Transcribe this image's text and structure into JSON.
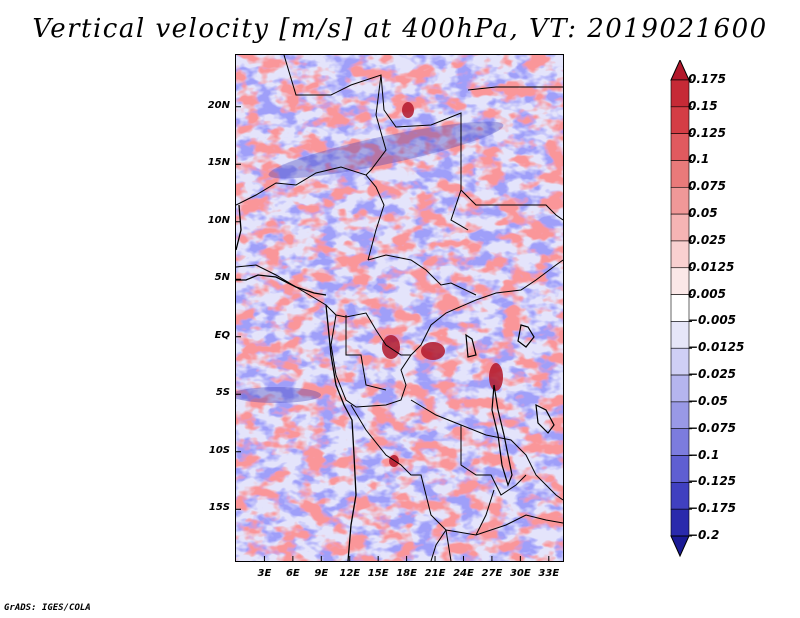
{
  "title": "Vertical velocity [m/s] at 400hPa, VT: 2019021600",
  "credit": "GrADS: IGES/COLA",
  "map": {
    "variable": "Vertical velocity",
    "units": "m/s",
    "level": "400hPa",
    "valid_time": "2019021600",
    "lat_labels": [
      "20N",
      "15N",
      "10N",
      "5N",
      "EQ",
      "5S",
      "10S",
      "15S"
    ],
    "lat_values": [
      20,
      15,
      10,
      5,
      0,
      -5,
      -10,
      -15
    ],
    "lon_labels": [
      "3E",
      "6E",
      "9E",
      "12E",
      "15E",
      "18E",
      "21E",
      "24E",
      "27E",
      "30E",
      "33E"
    ],
    "lon_values": [
      3,
      6,
      9,
      12,
      15,
      18,
      21,
      24,
      27,
      30,
      33
    ],
    "lon_range": [
      0,
      34.5
    ],
    "lat_range": [
      -19.5,
      24.5
    ]
  },
  "colorbar": {
    "labels": [
      "0.175",
      "0.15",
      "0.125",
      "0.1",
      "0.075",
      "0.05",
      "0.025",
      "0.0125",
      "0.005",
      "-0.005",
      "-0.0125",
      "-0.025",
      "-0.05",
      "-0.075",
      "-0.1",
      "-0.125",
      "-0.175",
      "-0.2"
    ],
    "colors": [
      "#b2182b",
      "#c62a36",
      "#d43d45",
      "#e05a5f",
      "#e97a7a",
      "#f09898",
      "#f5b4b4",
      "#f9d0d0",
      "#fbe8e8",
      "#ffffff",
      "#e6e6f8",
      "#cfcff5",
      "#b5b5ef",
      "#9999e6",
      "#7c7cde",
      "#5f5fd2",
      "#4040c0",
      "#2a2aac",
      "#1a1a96"
    ]
  }
}
